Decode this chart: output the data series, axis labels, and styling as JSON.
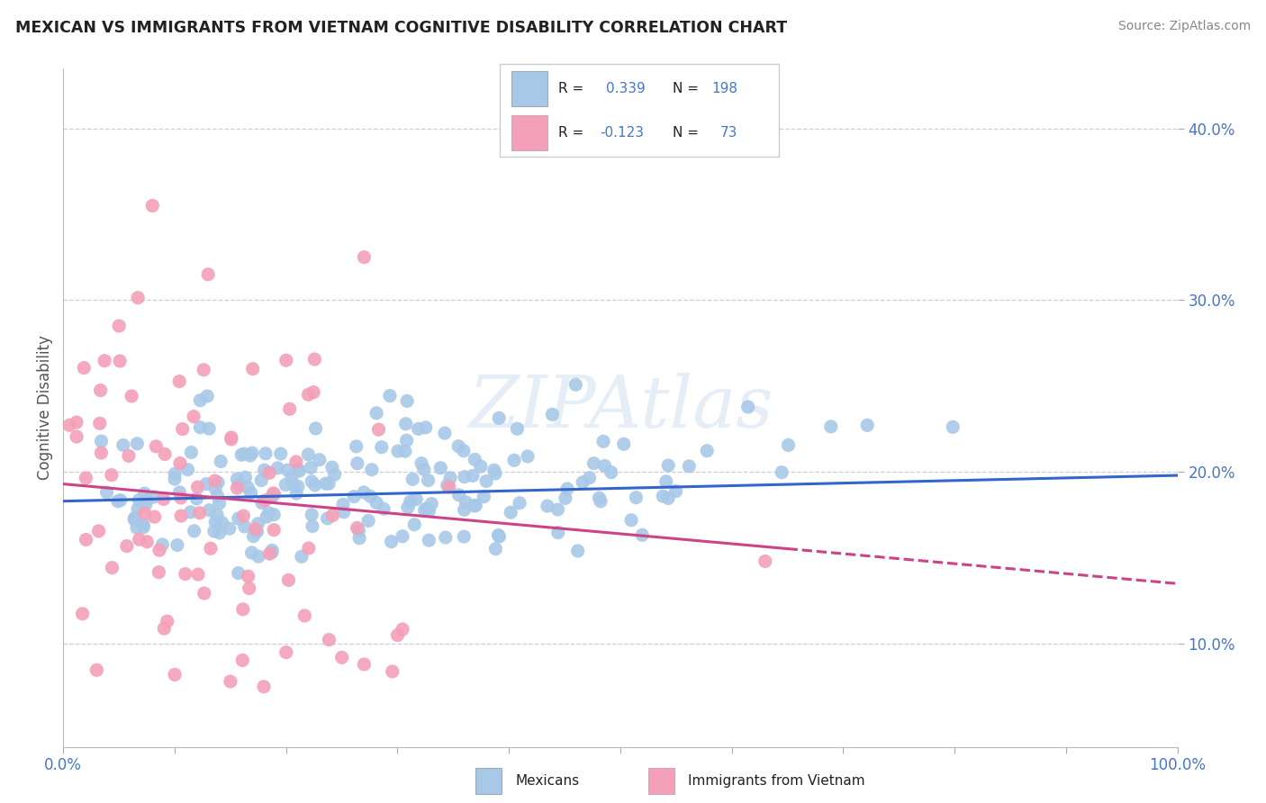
{
  "title": "MEXICAN VS IMMIGRANTS FROM VIETNAM COGNITIVE DISABILITY CORRELATION CHART",
  "source": "Source: ZipAtlas.com",
  "ylabel": "Cognitive Disability",
  "watermark": "ZIPAtlas",
  "xlim": [
    0.0,
    1.0
  ],
  "ylim": [
    0.04,
    0.435
  ],
  "xticks": [
    0.0,
    0.1,
    0.2,
    0.3,
    0.4,
    0.5,
    0.6,
    0.7,
    0.8,
    0.9,
    1.0
  ],
  "xticklabels": [
    "0.0%",
    "",
    "",
    "",
    "",
    "",
    "",
    "",
    "",
    "",
    "100.0%"
  ],
  "yticks": [
    0.1,
    0.2,
    0.3,
    0.4
  ],
  "yticklabels": [
    "10.0%",
    "20.0%",
    "30.0%",
    "40.0%"
  ],
  "blue_color": "#a8c8e8",
  "pink_color": "#f4a0b8",
  "blue_line_color": "#3366cc",
  "pink_line_color": "#cc4488",
  "grid_color": "#c8c8d8",
  "title_color": "#222222",
  "axis_label_color": "#4477cc",
  "seed": 42,
  "mexicans_N": 198,
  "vietnam_N": 73
}
